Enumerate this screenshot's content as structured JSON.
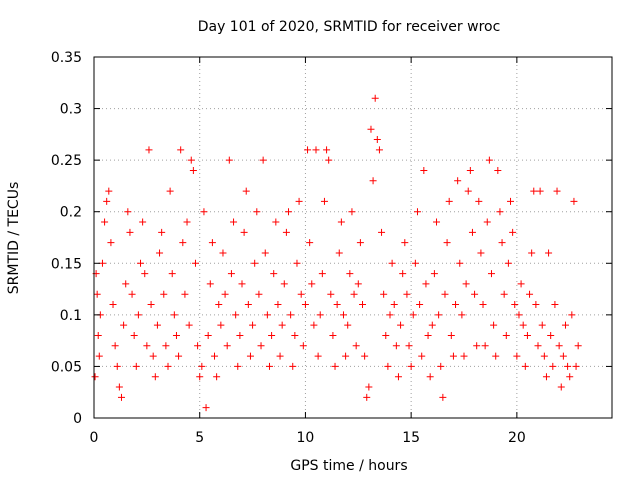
{
  "chart_data": {
    "type": "scatter",
    "title": "Day 101 of 2020, SRMTID for receiver wroc",
    "xlabel": "GPS time / hours",
    "ylabel": "SRMTID / TECUs",
    "xlim": [
      0,
      24.5
    ],
    "ylim": [
      0,
      0.35
    ],
    "xticks": [
      0,
      5,
      10,
      15,
      20
    ],
    "xtick_labels": [
      "0",
      "5",
      "10",
      "15",
      "20"
    ],
    "yticks": [
      0,
      0.05,
      0.1,
      0.15,
      0.2,
      0.25,
      0.3,
      0.35
    ],
    "ytick_labels": [
      "0",
      "0.05",
      "0.1",
      "0.15",
      "0.2",
      "0.25",
      "0.3",
      "0.35"
    ],
    "grid": true,
    "marker": "+",
    "color": "#ff0000",
    "series": [
      {
        "name": "SRMTID",
        "points": [
          [
            0.05,
            0.04
          ],
          [
            0.1,
            0.14
          ],
          [
            0.15,
            0.12
          ],
          [
            0.2,
            0.08
          ],
          [
            0.25,
            0.06
          ],
          [
            0.3,
            0.1
          ],
          [
            0.4,
            0.15
          ],
          [
            0.5,
            0.19
          ],
          [
            0.6,
            0.21
          ],
          [
            0.7,
            0.22
          ],
          [
            0.8,
            0.17
          ],
          [
            0.9,
            0.11
          ],
          [
            1.0,
            0.07
          ],
          [
            1.1,
            0.05
          ],
          [
            1.2,
            0.03
          ],
          [
            1.3,
            0.02
          ],
          [
            1.4,
            0.09
          ],
          [
            1.5,
            0.13
          ],
          [
            1.6,
            0.2
          ],
          [
            1.7,
            0.18
          ],
          [
            1.8,
            0.12
          ],
          [
            1.9,
            0.08
          ],
          [
            2.0,
            0.05
          ],
          [
            2.1,
            0.1
          ],
          [
            2.2,
            0.15
          ],
          [
            2.3,
            0.19
          ],
          [
            2.4,
            0.14
          ],
          [
            2.5,
            0.07
          ],
          [
            2.6,
            0.26
          ],
          [
            2.7,
            0.11
          ],
          [
            2.8,
            0.06
          ],
          [
            2.9,
            0.04
          ],
          [
            3.0,
            0.09
          ],
          [
            3.1,
            0.16
          ],
          [
            3.2,
            0.18
          ],
          [
            3.3,
            0.12
          ],
          [
            3.4,
            0.07
          ],
          [
            3.5,
            0.05
          ],
          [
            3.6,
            0.22
          ],
          [
            3.7,
            0.14
          ],
          [
            3.8,
            0.1
          ],
          [
            3.9,
            0.08
          ],
          [
            4.0,
            0.06
          ],
          [
            4.1,
            0.26
          ],
          [
            4.2,
            0.17
          ],
          [
            4.3,
            0.12
          ],
          [
            4.4,
            0.19
          ],
          [
            4.5,
            0.09
          ],
          [
            4.6,
            0.25
          ],
          [
            4.7,
            0.24
          ],
          [
            4.8,
            0.15
          ],
          [
            4.9,
            0.07
          ],
          [
            5.0,
            0.04
          ],
          [
            5.1,
            0.05
          ],
          [
            5.2,
            0.2
          ],
          [
            5.3,
            0.01
          ],
          [
            5.4,
            0.08
          ],
          [
            5.5,
            0.13
          ],
          [
            5.6,
            0.17
          ],
          [
            5.7,
            0.06
          ],
          [
            5.8,
            0.04
          ],
          [
            5.9,
            0.11
          ],
          [
            6.0,
            0.09
          ],
          [
            6.1,
            0.16
          ],
          [
            6.2,
            0.12
          ],
          [
            6.3,
            0.07
          ],
          [
            6.4,
            0.25
          ],
          [
            6.5,
            0.14
          ],
          [
            6.6,
            0.19
          ],
          [
            6.7,
            0.1
          ],
          [
            6.8,
            0.05
          ],
          [
            6.9,
            0.08
          ],
          [
            7.0,
            0.13
          ],
          [
            7.1,
            0.18
          ],
          [
            7.2,
            0.22
          ],
          [
            7.3,
            0.11
          ],
          [
            7.4,
            0.06
          ],
          [
            7.5,
            0.09
          ],
          [
            7.6,
            0.15
          ],
          [
            7.7,
            0.2
          ],
          [
            7.8,
            0.12
          ],
          [
            7.9,
            0.07
          ],
          [
            8.0,
            0.25
          ],
          [
            8.1,
            0.16
          ],
          [
            8.2,
            0.1
          ],
          [
            8.3,
            0.05
          ],
          [
            8.4,
            0.08
          ],
          [
            8.5,
            0.14
          ],
          [
            8.6,
            0.19
          ],
          [
            8.7,
            0.11
          ],
          [
            8.8,
            0.06
          ],
          [
            8.9,
            0.09
          ],
          [
            9.0,
            0.13
          ],
          [
            9.1,
            0.18
          ],
          [
            9.2,
            0.2
          ],
          [
            9.3,
            0.1
          ],
          [
            9.4,
            0.05
          ],
          [
            9.5,
            0.08
          ],
          [
            9.6,
            0.15
          ],
          [
            9.7,
            0.21
          ],
          [
            9.8,
            0.12
          ],
          [
            9.9,
            0.07
          ],
          [
            10.0,
            0.11
          ],
          [
            10.1,
            0.26
          ],
          [
            10.2,
            0.17
          ],
          [
            10.3,
            0.13
          ],
          [
            10.4,
            0.09
          ],
          [
            10.5,
            0.26
          ],
          [
            10.6,
            0.06
          ],
          [
            10.7,
            0.1
          ],
          [
            10.8,
            0.14
          ],
          [
            10.9,
            0.21
          ],
          [
            11.0,
            0.26
          ],
          [
            11.1,
            0.25
          ],
          [
            11.2,
            0.12
          ],
          [
            11.3,
            0.08
          ],
          [
            11.4,
            0.05
          ],
          [
            11.5,
            0.11
          ],
          [
            11.6,
            0.16
          ],
          [
            11.7,
            0.19
          ],
          [
            11.8,
            0.1
          ],
          [
            11.9,
            0.06
          ],
          [
            12.0,
            0.09
          ],
          [
            12.1,
            0.14
          ],
          [
            12.2,
            0.2
          ],
          [
            12.3,
            0.12
          ],
          [
            12.4,
            0.07
          ],
          [
            12.5,
            0.13
          ],
          [
            12.6,
            0.17
          ],
          [
            12.7,
            0.11
          ],
          [
            12.8,
            0.06
          ],
          [
            12.9,
            0.02
          ],
          [
            13.0,
            0.03
          ],
          [
            13.1,
            0.28
          ],
          [
            13.2,
            0.23
          ],
          [
            13.3,
            0.31
          ],
          [
            13.4,
            0.27
          ],
          [
            13.5,
            0.26
          ],
          [
            13.6,
            0.18
          ],
          [
            13.7,
            0.12
          ],
          [
            13.8,
            0.08
          ],
          [
            13.9,
            0.05
          ],
          [
            14.0,
            0.1
          ],
          [
            14.1,
            0.15
          ],
          [
            14.2,
            0.11
          ],
          [
            14.3,
            0.07
          ],
          [
            14.4,
            0.04
          ],
          [
            14.5,
            0.09
          ],
          [
            14.6,
            0.14
          ],
          [
            14.7,
            0.17
          ],
          [
            14.8,
            0.12
          ],
          [
            14.9,
            0.07
          ],
          [
            15.0,
            0.05
          ],
          [
            15.1,
            0.1
          ],
          [
            15.2,
            0.15
          ],
          [
            15.3,
            0.2
          ],
          [
            15.4,
            0.11
          ],
          [
            15.5,
            0.06
          ],
          [
            15.6,
            0.24
          ],
          [
            15.7,
            0.13
          ],
          [
            15.8,
            0.08
          ],
          [
            15.9,
            0.04
          ],
          [
            16.0,
            0.09
          ],
          [
            16.1,
            0.14
          ],
          [
            16.2,
            0.19
          ],
          [
            16.3,
            0.1
          ],
          [
            16.4,
            0.05
          ],
          [
            16.5,
            0.02
          ],
          [
            16.6,
            0.12
          ],
          [
            16.7,
            0.17
          ],
          [
            16.8,
            0.21
          ],
          [
            16.9,
            0.08
          ],
          [
            17.0,
            0.06
          ],
          [
            17.1,
            0.11
          ],
          [
            17.2,
            0.23
          ],
          [
            17.3,
            0.15
          ],
          [
            17.4,
            0.1
          ],
          [
            17.5,
            0.06
          ],
          [
            17.6,
            0.13
          ],
          [
            17.7,
            0.22
          ],
          [
            17.8,
            0.24
          ],
          [
            17.9,
            0.18
          ],
          [
            18.0,
            0.12
          ],
          [
            18.1,
            0.07
          ],
          [
            18.2,
            0.21
          ],
          [
            18.3,
            0.16
          ],
          [
            18.4,
            0.11
          ],
          [
            18.5,
            0.07
          ],
          [
            18.6,
            0.19
          ],
          [
            18.7,
            0.25
          ],
          [
            18.8,
            0.14
          ],
          [
            18.9,
            0.09
          ],
          [
            19.0,
            0.06
          ],
          [
            19.1,
            0.24
          ],
          [
            19.2,
            0.2
          ],
          [
            19.3,
            0.17
          ],
          [
            19.4,
            0.12
          ],
          [
            19.5,
            0.08
          ],
          [
            19.6,
            0.15
          ],
          [
            19.7,
            0.21
          ],
          [
            19.8,
            0.18
          ],
          [
            19.9,
            0.11
          ],
          [
            20.0,
            0.06
          ],
          [
            20.1,
            0.1
          ],
          [
            20.2,
            0.13
          ],
          [
            20.3,
            0.09
          ],
          [
            20.4,
            0.05
          ],
          [
            20.5,
            0.08
          ],
          [
            20.6,
            0.12
          ],
          [
            20.7,
            0.16
          ],
          [
            20.8,
            0.22
          ],
          [
            20.9,
            0.11
          ],
          [
            21.0,
            0.07
          ],
          [
            21.1,
            0.22
          ],
          [
            21.2,
            0.09
          ],
          [
            21.3,
            0.06
          ],
          [
            21.4,
            0.04
          ],
          [
            21.5,
            0.16
          ],
          [
            21.6,
            0.08
          ],
          [
            21.7,
            0.05
          ],
          [
            21.8,
            0.11
          ],
          [
            21.9,
            0.22
          ],
          [
            22.0,
            0.07
          ],
          [
            22.1,
            0.03
          ],
          [
            22.2,
            0.06
          ],
          [
            22.3,
            0.09
          ],
          [
            22.4,
            0.05
          ],
          [
            22.5,
            0.04
          ],
          [
            22.6,
            0.1
          ],
          [
            22.7,
            0.21
          ],
          [
            22.8,
            0.05
          ],
          [
            22.9,
            0.07
          ]
        ]
      }
    ]
  }
}
